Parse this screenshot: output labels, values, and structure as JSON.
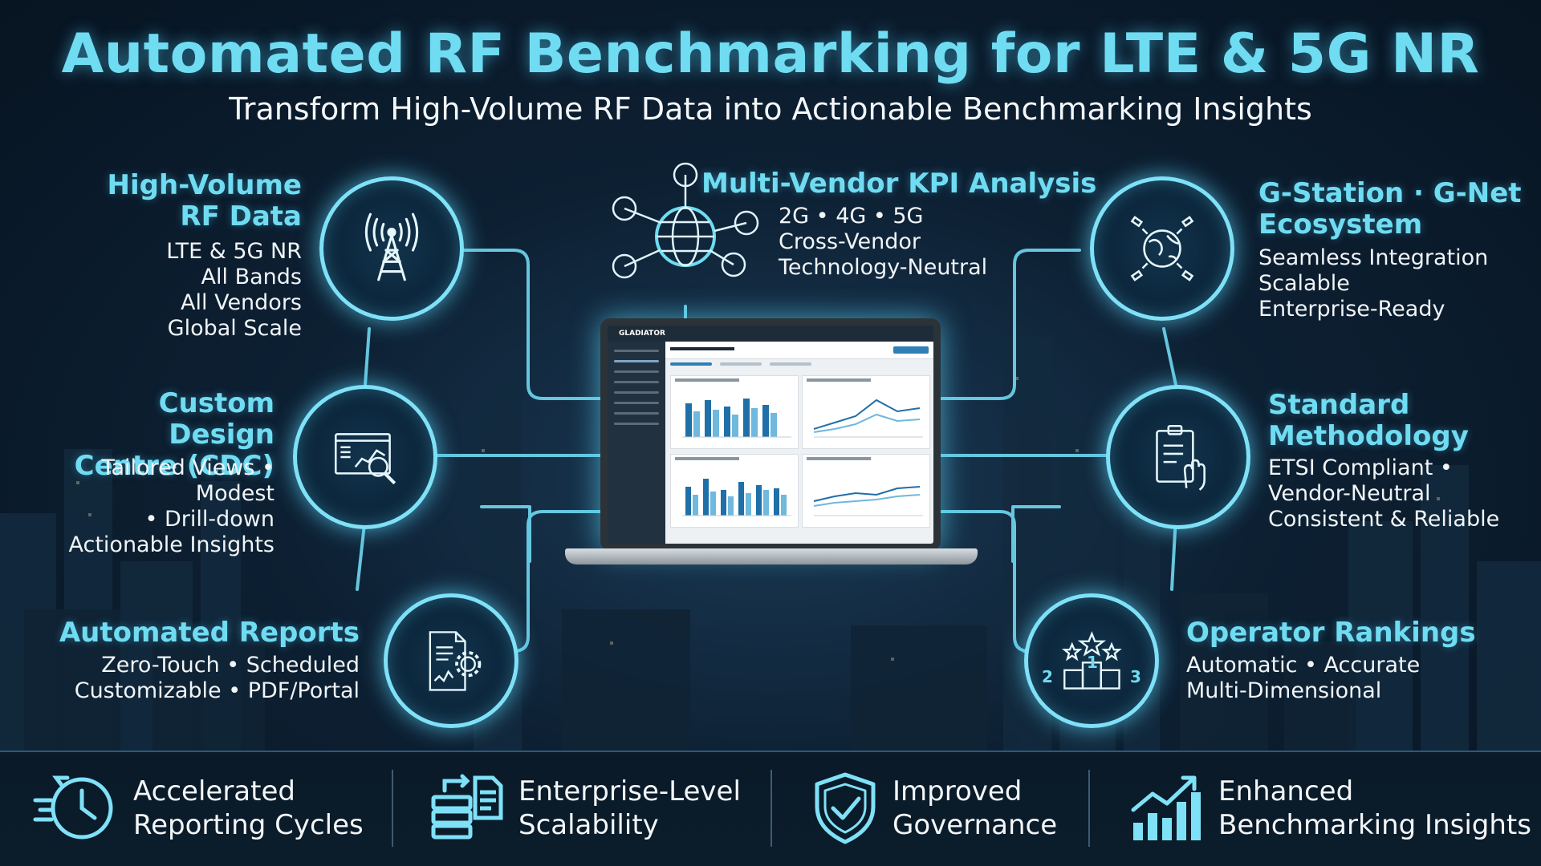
{
  "title": "Automated RF Benchmarking for LTE & 5G NR",
  "subtitle": "Transform High-Volume RF Data into Actionable Benchmarking Insights",
  "features": {
    "rf_data": {
      "heading_line1": "High-Volume",
      "heading_line2": "RF Data",
      "lines": [
        "LTE & 5G NR",
        "All Bands",
        "All Vendors",
        "Global Scale"
      ],
      "icon": "cell-tower-icon"
    },
    "kpi": {
      "heading": "Multi-Vendor KPI Analysis",
      "lines": [
        "2G • 4G • 5G",
        "Cross-Vendor",
        "Technology-Neutral"
      ],
      "icon": "globe-network-icon"
    },
    "ecosystem": {
      "heading_line1": "G-Station · G-Net",
      "heading_line2": "Ecosystem",
      "lines": [
        "Seamless Integration",
        "Scalable",
        "Enterprise-Ready"
      ],
      "icon": "satellite-globe-icon"
    },
    "cdc": {
      "heading_line1": "Custom Design",
      "heading_line2": "Centre (CDC)",
      "lines": [
        "Tailored Views • Modest",
        "• Drill-down",
        "Actionable Insights"
      ],
      "icon": "dashboard-magnifier-icon"
    },
    "methodology": {
      "heading_line1": "Standard",
      "heading_line2": "Methodology",
      "lines": [
        "ETSI Compliant •",
        "Vendor-Neutral",
        "Consistent & Reliable"
      ],
      "icon": "clipboard-touch-icon"
    },
    "reports": {
      "heading": "Automated Reports",
      "lines": [
        "Zero-Touch • Scheduled",
        "Customizable • PDF/Portal"
      ],
      "icon": "report-gear-icon"
    },
    "rankings": {
      "heading": "Operator Rankings",
      "lines": [
        "Automatic • Accurate",
        "Multi-Dimensional"
      ],
      "icon": "podium-stars-icon",
      "podium": [
        "2",
        "1",
        "3"
      ]
    }
  },
  "laptop": {
    "brand": "GLADIATOR"
  },
  "benefits": [
    {
      "line1": "Accelerated",
      "line2": "Reporting Cycles",
      "icon": "fast-clock-icon"
    },
    {
      "line1": "Enterprise-Level",
      "line2": "Scalability",
      "icon": "server-stack-icon"
    },
    {
      "line1": "Improved",
      "line2": "Governance",
      "icon": "shield-check-icon"
    },
    {
      "line1": "Enhanced",
      "line2": "Benchmarking Insights",
      "icon": "growth-chart-icon"
    }
  ],
  "colors": {
    "accent": "#6fdcf2",
    "glow": "#7fe1f7",
    "background": "#0d2033"
  }
}
